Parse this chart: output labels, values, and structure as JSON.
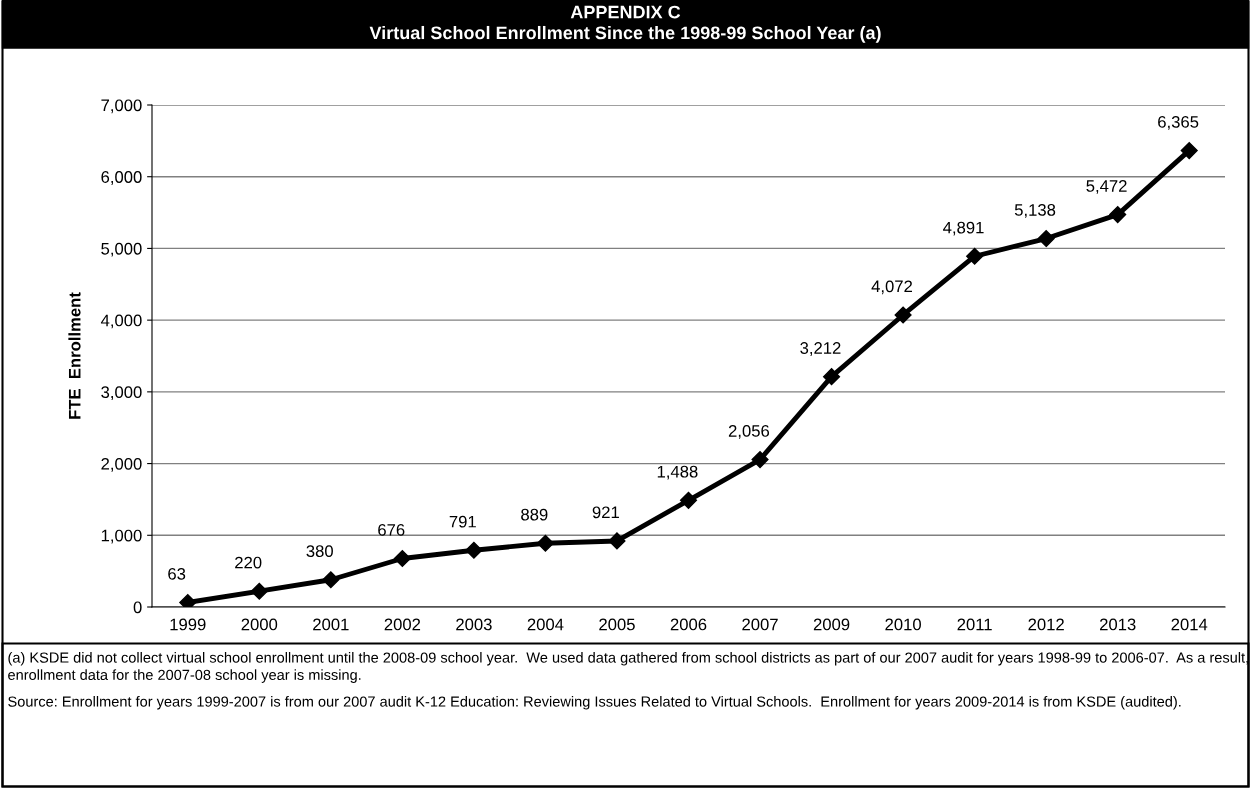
{
  "chart_data": {
    "type": "line",
    "title": "APPENDIX C\nVirtual School Enrollment Since the 1998-99 School Year (a)",
    "ylabel": "FTE  Enrollment",
    "categories": [
      "1999",
      "2000",
      "2001",
      "2002",
      "2003",
      "2004",
      "2005",
      "2006",
      "2007",
      "2009",
      "2010",
      "2011",
      "2012",
      "2013",
      "2014"
    ],
    "series": [
      {
        "color": "#000000",
        "values": [
          63,
          220,
          380,
          676,
          791,
          889,
          921,
          1488,
          2056,
          3212,
          4072,
          4891,
          5138,
          5472,
          6365
        ],
        "value_labels": [
          "63",
          "220",
          "380",
          "676",
          "791",
          "889",
          "921",
          "1,488",
          "2,056",
          "3,212",
          "4,072",
          "4,891",
          "5,138",
          "5,472",
          "6,365"
        ]
      }
    ],
    "ylim": [
      0,
      7000
    ],
    "yticks": [
      0,
      {
        "value": 1000,
        "label": "1,000"
      },
      {
        "value": 2000,
        "label": "2,000"
      },
      {
        "value": 3000,
        "label": "3,000"
      },
      {
        "value": 4000,
        "label": "4,000"
      },
      {
        "value": 5000,
        "label": "5,000"
      },
      {
        "value": 6000,
        "label": "6,000"
      },
      {
        "value": 7000,
        "label": "7,000"
      }
    ],
    "grid": "y",
    "marker": "diamond",
    "line_style": "solid",
    "annotations": [
      "(a) KSDE did not collect virtual school enrollment until the 2008-09 school year.  We used data gathered from school districts as part of our 2007 audit for years 1998-99 to 2006-07.  As a result, enrollment data for the 2007-08 school year is missing.",
      "Source: Enrollment for years 1999-2007 is from our 2007 audit K-12 Education: Reviewing Issues Related to Virtual Schools.  Enrollment for years 2009-2014 is from KSDE (audited)."
    ]
  }
}
